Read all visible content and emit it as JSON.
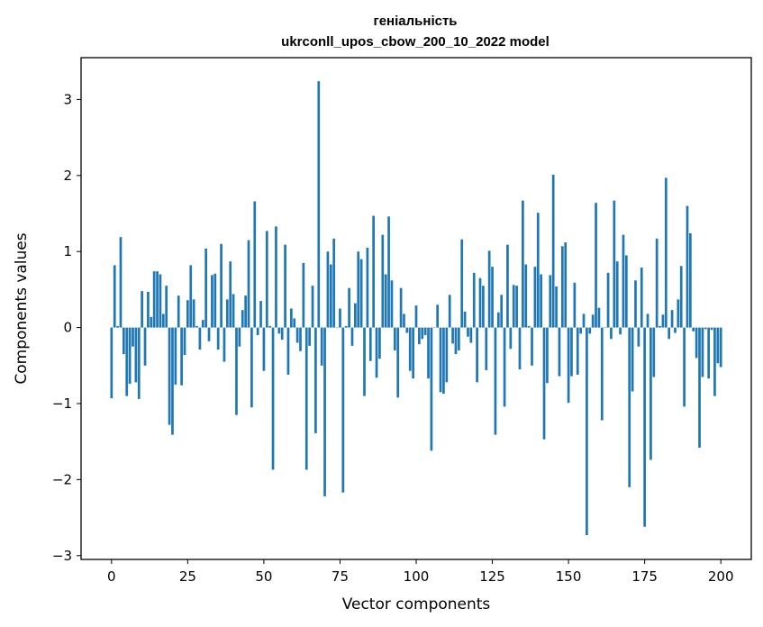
{
  "chart_data": {
    "type": "bar",
    "title": "геніальність",
    "subtitle": "ukrconll_upos_cbow_200_10_2022 model",
    "xlabel": "Vector components",
    "ylabel": "Components values",
    "xlim": [
      -10,
      210
    ],
    "ylim": [
      -3.05,
      3.55
    ],
    "x_ticks": [
      0,
      25,
      50,
      75,
      100,
      125,
      150,
      175,
      200
    ],
    "x_tick_labels": [
      "0",
      "25",
      "50",
      "75",
      "100",
      "125",
      "150",
      "175",
      "200"
    ],
    "y_ticks": [
      -3,
      -2,
      -1,
      0,
      1,
      2,
      3
    ],
    "y_tick_labels": [
      "−3",
      "−2",
      "−1",
      "0",
      "1",
      "2",
      "3"
    ],
    "grid": false,
    "bar_color": "#1f77b4",
    "values": [
      -0.93,
      0.82,
      0.02,
      1.19,
      -0.35,
      -0.9,
      -0.74,
      -0.25,
      -0.72,
      -0.94,
      0.48,
      -0.5,
      0.47,
      0.14,
      0.74,
      0.74,
      0.7,
      0.18,
      0.55,
      -1.28,
      -1.41,
      -0.75,
      0.42,
      -0.76,
      -0.36,
      0.36,
      0.82,
      0.37,
      0.02,
      -0.29,
      0.1,
      1.04,
      -0.18,
      0.69,
      0.71,
      -0.29,
      1.1,
      -0.45,
      0.37,
      0.87,
      0.44,
      -1.15,
      -0.25,
      0.23,
      0.42,
      1.15,
      -1.05,
      1.66,
      -0.1,
      0.35,
      -0.57,
      1.27,
      0.02,
      -1.87,
      1.33,
      -0.08,
      -0.16,
      1.09,
      -0.62,
      0.25,
      0.12,
      -0.2,
      -0.31,
      0.85,
      -1.87,
      -0.24,
      0.55,
      -1.39,
      3.24,
      -0.5,
      -2.22,
      1.0,
      0.83,
      1.17,
      0.0,
      0.25,
      -2.17,
      0.02,
      0.52,
      -0.24,
      0.32,
      1.0,
      0.9,
      -0.9,
      1.05,
      -0.44,
      1.47,
      -0.66,
      -0.41,
      1.22,
      0.7,
      1.46,
      0.62,
      -0.3,
      -0.92,
      0.52,
      0.18,
      -0.07,
      -0.57,
      -0.67,
      0.29,
      -0.22,
      -0.15,
      -0.1,
      -0.67,
      -1.62,
      0.0,
      0.3,
      -0.85,
      -0.87,
      -0.72,
      0.43,
      -0.21,
      -0.35,
      -0.3,
      1.16,
      0.21,
      -0.12,
      -0.2,
      0.72,
      -0.72,
      0.65,
      0.55,
      -0.56,
      1.01,
      0.8,
      -1.41,
      0.2,
      0.43,
      -1.04,
      1.09,
      -0.28,
      0.56,
      0.55,
      -0.55,
      1.67,
      0.83,
      0.02,
      -0.5,
      0.8,
      1.51,
      0.7,
      -1.47,
      -0.73,
      0.69,
      2.01,
      0.54,
      -0.64,
      1.07,
      1.12,
      -0.99,
      -0.64,
      0.59,
      -0.62,
      -0.08,
      0.18,
      -2.73,
      -0.08,
      0.17,
      1.64,
      0.26,
      -1.22,
      0.0,
      0.72,
      -0.15,
      1.67,
      0.87,
      -0.09,
      1.22,
      0.95,
      -2.1,
      -0.84,
      0.62,
      -0.25,
      0.79,
      -2.62,
      0.18,
      -1.74,
      -0.65,
      1.17,
      0.02,
      0.17,
      1.97,
      -0.15,
      0.23,
      -0.07,
      0.37,
      0.81,
      -1.04,
      1.6,
      1.24,
      -0.05,
      -0.4,
      -1.58,
      -0.65,
      -0.02,
      -0.67,
      -0.03,
      -0.9,
      -0.47,
      -0.52
    ]
  }
}
